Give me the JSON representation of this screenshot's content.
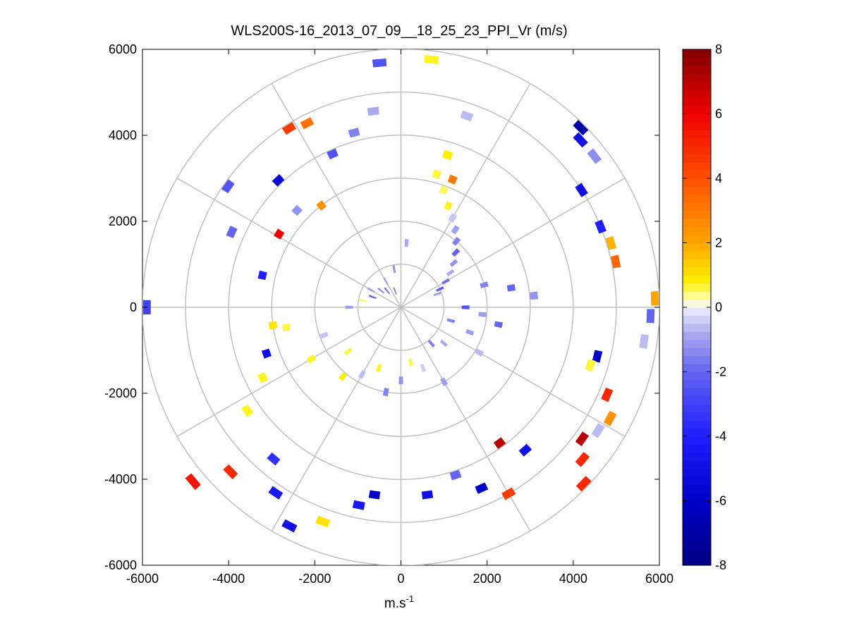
{
  "chart_data": {
    "type": "heatmap",
    "title": "WLS200S-16_2013_07_09__18_25_23_PPI_Vr (m/s)",
    "xlabel_base": "m.s",
    "xlabel_exponent": "-1",
    "ylabel": "",
    "xlim": [
      -6000,
      6000
    ],
    "ylim": [
      -6000,
      6000
    ],
    "xticks": [
      -6000,
      -4000,
      -2000,
      0,
      2000,
      4000,
      6000
    ],
    "yticks": [
      -6000,
      -4000,
      -2000,
      0,
      2000,
      4000,
      6000
    ],
    "xtick_labels": [
      "-6000",
      "-4000",
      "-2000",
      "0",
      "2000",
      "4000",
      "6000"
    ],
    "ytick_labels": [
      "-6000",
      "-4000",
      "-2000",
      "0",
      "2000",
      "4000",
      "6000"
    ],
    "polar_grid": {
      "range_rings": [
        1000,
        2000,
        3000,
        4000,
        5000,
        6000
      ],
      "spokes_deg": [
        0,
        30,
        60,
        90,
        120,
        150,
        180,
        210,
        240,
        270,
        300,
        330
      ]
    },
    "colorbar": {
      "min": -8,
      "max": 8,
      "ticks": [
        8,
        6,
        4,
        2,
        0,
        -2,
        -4,
        -6,
        -8
      ],
      "tick_labels": [
        "8",
        "6",
        "4",
        "2",
        "0",
        "-2",
        "-4",
        "-6",
        "-8"
      ],
      "colormap": "blue-white-yellow-red"
    },
    "cells": [
      {
        "az": 15,
        "r": 3200,
        "v": 0.6
      },
      {
        "az": 20,
        "r": 2900,
        "v": 0.5
      },
      {
        "az": 25,
        "r": 2600,
        "v": 0.7
      },
      {
        "az": 30,
        "r": 2400,
        "v": -0.5
      },
      {
        "az": 35,
        "r": 2200,
        "v": -1.0
      },
      {
        "az": 40,
        "r": 2000,
        "v": -1.5
      },
      {
        "az": 45,
        "r": 1800,
        "v": -2.0
      },
      {
        "az": 50,
        "r": 1600,
        "v": -1.2
      },
      {
        "az": 55,
        "r": 1400,
        "v": -0.8
      },
      {
        "az": 60,
        "r": 1200,
        "v": -1.8
      },
      {
        "az": 65,
        "r": 1000,
        "v": -2.2
      },
      {
        "az": 70,
        "r": 900,
        "v": -1.0
      },
      {
        "az": 75,
        "r": 2000,
        "v": -1.5
      },
      {
        "az": 80,
        "r": 2600,
        "v": -2.0
      },
      {
        "az": 85,
        "r": 3100,
        "v": -1.2
      },
      {
        "az": 90,
        "r": 1500,
        "v": -2.5
      },
      {
        "az": 95,
        "r": 1900,
        "v": -1.0
      },
      {
        "az": 100,
        "r": 2300,
        "v": -2.0
      },
      {
        "az": 105,
        "r": 1200,
        "v": -1.5
      },
      {
        "az": 110,
        "r": 1700,
        "v": -1.0
      },
      {
        "az": 120,
        "r": 2100,
        "v": -0.6
      },
      {
        "az": 130,
        "r": 1300,
        "v": -0.8
      },
      {
        "az": 140,
        "r": 1100,
        "v": -1.6
      },
      {
        "az": 150,
        "r": 2000,
        "v": -1.0
      },
      {
        "az": 160,
        "r": 1500,
        "v": -0.4
      },
      {
        "az": 170,
        "r": 1300,
        "v": 0.6
      },
      {
        "az": 180,
        "r": 1700,
        "v": -1.2
      },
      {
        "az": 190,
        "r": 2000,
        "v": -1.5
      },
      {
        "az": 200,
        "r": 1500,
        "v": 0.7
      },
      {
        "az": 210,
        "r": 1800,
        "v": -0.6
      },
      {
        "az": 220,
        "r": 2100,
        "v": 0.8
      },
      {
        "az": 230,
        "r": 1600,
        "v": 0.6
      },
      {
        "az": 240,
        "r": 2400,
        "v": 0.7
      },
      {
        "az": 250,
        "r": 1900,
        "v": -0.5
      },
      {
        "az": 260,
        "r": 2700,
        "v": 0.6
      },
      {
        "az": 270,
        "r": 1200,
        "v": -1.0
      },
      {
        "az": 280,
        "r": 900,
        "v": 0.5
      },
      {
        "az": 290,
        "r": 700,
        "v": -2.0
      },
      {
        "az": 300,
        "r": 800,
        "v": -1.0
      },
      {
        "az": 310,
        "r": 600,
        "v": -1.5
      },
      {
        "az": 320,
        "r": 500,
        "v": -2.5
      },
      {
        "az": 330,
        "r": 700,
        "v": -1.0
      },
      {
        "az": 340,
        "r": 400,
        "v": -2.0
      },
      {
        "az": 350,
        "r": 900,
        "v": -1.2
      },
      {
        "az": 5,
        "r": 1500,
        "v": -0.8
      },
      {
        "az": 355,
        "r": 5700,
        "v": -2.5
      },
      {
        "az": 7,
        "r": 5800,
        "v": 0.7
      },
      {
        "az": 328,
        "r": 4900,
        "v": 4.5
      },
      {
        "az": 333,
        "r": 4800,
        "v": 3.2
      },
      {
        "az": 352,
        "r": 4600,
        "v": -0.8
      },
      {
        "az": 19,
        "r": 4700,
        "v": -0.6
      },
      {
        "az": 45,
        "r": 5900,
        "v": -7.0
      },
      {
        "az": 47,
        "r": 5700,
        "v": -5.0
      },
      {
        "az": 52,
        "r": 5700,
        "v": -1.3
      },
      {
        "az": 57,
        "r": 5000,
        "v": -5.0
      },
      {
        "az": 68,
        "r": 5000,
        "v": -4.0
      },
      {
        "az": 73,
        "r": 5100,
        "v": 1.8
      },
      {
        "az": 78,
        "r": 5100,
        "v": 3.5
      },
      {
        "az": 88,
        "r": 5900,
        "v": 2.0
      },
      {
        "az": 92,
        "r": 5800,
        "v": -2.0
      },
      {
        "az": 98,
        "r": 5700,
        "v": -0.6
      },
      {
        "az": 104,
        "r": 4700,
        "v": -6.0
      },
      {
        "az": 107,
        "r": 4600,
        "v": 0.6
      },
      {
        "az": 113,
        "r": 5200,
        "v": 5.0
      },
      {
        "az": 118,
        "r": 5500,
        "v": 2.5
      },
      {
        "az": 122,
        "r": 5400,
        "v": -0.6
      },
      {
        "az": 126,
        "r": 5200,
        "v": 7.0
      },
      {
        "az": 130,
        "r": 5500,
        "v": 5.0
      },
      {
        "az": 134,
        "r": 5900,
        "v": 5.0
      },
      {
        "az": 139,
        "r": 4400,
        "v": -5.0
      },
      {
        "az": 144,
        "r": 3900,
        "v": 7.0
      },
      {
        "az": 150,
        "r": 5000,
        "v": 4.5
      },
      {
        "az": 156,
        "r": 4600,
        "v": -6.0
      },
      {
        "az": 162,
        "r": 4100,
        "v": -2.0
      },
      {
        "az": 172,
        "r": 4400,
        "v": -5.0
      },
      {
        "az": 188,
        "r": 4400,
        "v": -6.0
      },
      {
        "az": 192,
        "r": 4700,
        "v": -4.5
      },
      {
        "az": 200,
        "r": 5300,
        "v": 1.0
      },
      {
        "az": 207,
        "r": 5700,
        "v": -5.0
      },
      {
        "az": 214,
        "r": 5200,
        "v": -4.5
      },
      {
        "az": 220,
        "r": 4600,
        "v": -3.5
      },
      {
        "az": 226,
        "r": 5500,
        "v": 5.0
      },
      {
        "az": 230,
        "r": 6300,
        "v": 5.5
      },
      {
        "az": 236,
        "r": 4300,
        "v": 0.7
      },
      {
        "az": 243,
        "r": 3600,
        "v": 0.7
      },
      {
        "az": 251,
        "r": 3300,
        "v": -5.0
      },
      {
        "az": 262,
        "r": 3000,
        "v": 1.0
      },
      {
        "az": 270,
        "r": 5900,
        "v": -3.0
      },
      {
        "az": 283,
        "r": 3300,
        "v": -4.0
      },
      {
        "az": 294,
        "r": 4300,
        "v": -2.0
      },
      {
        "az": 301,
        "r": 3300,
        "v": 6.0
      },
      {
        "az": 305,
        "r": 4900,
        "v": -2.5
      },
      {
        "az": 313,
        "r": 3300,
        "v": -1.2
      },
      {
        "az": 316,
        "r": 4100,
        "v": -5.5
      },
      {
        "az": 322,
        "r": 3000,
        "v": 2.5
      },
      {
        "az": 336,
        "r": 3900,
        "v": -2.5
      },
      {
        "az": 345,
        "r": 4200,
        "v": -1.5
      },
      {
        "az": 17,
        "r": 3700,
        "v": 0.8
      },
      {
        "az": 22,
        "r": 3200,
        "v": 3.0
      }
    ]
  }
}
